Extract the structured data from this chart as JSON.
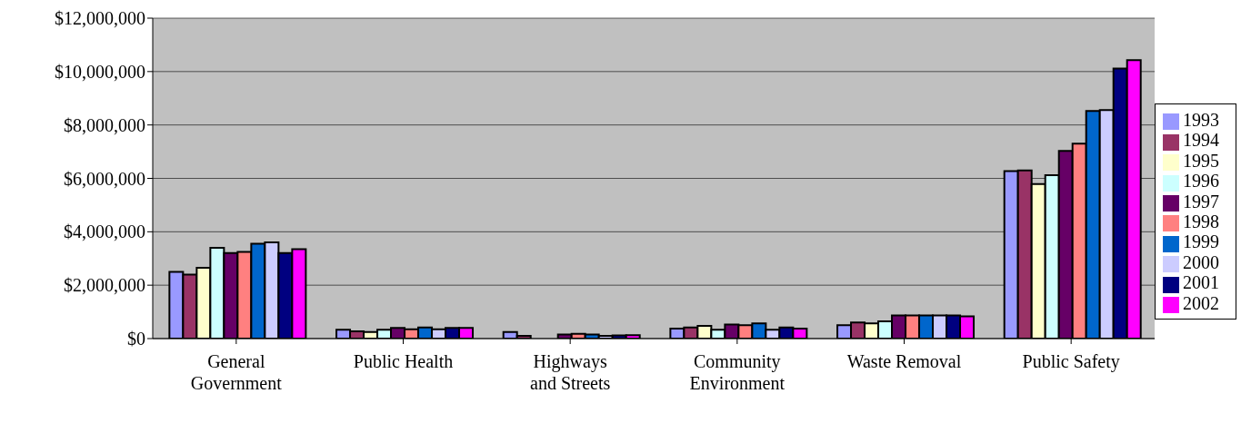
{
  "chart_data": {
    "type": "bar",
    "categories": [
      "General Government",
      "Public Health",
      "Highways and Streets",
      "Community Environment",
      "Waste Removal",
      "Public Safety"
    ],
    "series": [
      {
        "name": "1993",
        "color": "#9999ff",
        "values": [
          2500000,
          330000,
          250000,
          370000,
          500000,
          6270000
        ]
      },
      {
        "name": "1994",
        "color": "#993366",
        "values": [
          2400000,
          270000,
          100000,
          420000,
          600000,
          6300000
        ]
      },
      {
        "name": "1995",
        "color": "#ffffcc",
        "values": [
          2650000,
          250000,
          null,
          480000,
          570000,
          5790000
        ]
      },
      {
        "name": "1996",
        "color": "#ccffff",
        "values": [
          3400000,
          330000,
          null,
          330000,
          650000,
          6120000
        ]
      },
      {
        "name": "1997",
        "color": "#660066",
        "values": [
          3200000,
          400000,
          150000,
          530000,
          870000,
          7030000
        ]
      },
      {
        "name": "1998",
        "color": "#ff8080",
        "values": [
          3250000,
          350000,
          180000,
          500000,
          870000,
          7300000
        ]
      },
      {
        "name": "1999",
        "color": "#0066cc",
        "values": [
          3550000,
          420000,
          150000,
          570000,
          870000,
          8520000
        ]
      },
      {
        "name": "2000",
        "color": "#ccccff",
        "values": [
          3600000,
          350000,
          100000,
          330000,
          870000,
          8560000
        ]
      },
      {
        "name": "2001",
        "color": "#000080",
        "values": [
          3200000,
          400000,
          120000,
          420000,
          870000,
          10110000
        ]
      },
      {
        "name": "2002",
        "color": "#ff00ff",
        "values": [
          3350000,
          400000,
          130000,
          370000,
          830000,
          10430000
        ]
      }
    ],
    "ylim": [
      0,
      12000000
    ],
    "yticks": [
      {
        "value": 0,
        "label": "$0"
      },
      {
        "value": 2000000,
        "label": "$2,000,000"
      },
      {
        "value": 4000000,
        "label": "$4,000,000"
      },
      {
        "value": 6000000,
        "label": "$6,000,000"
      },
      {
        "value": 8000000,
        "label": "$8,000,000"
      },
      {
        "value": 10000000,
        "label": "$10,000,000"
      },
      {
        "value": 12000000,
        "label": "$12,000,000"
      }
    ],
    "grid": "y",
    "legend": "right"
  }
}
